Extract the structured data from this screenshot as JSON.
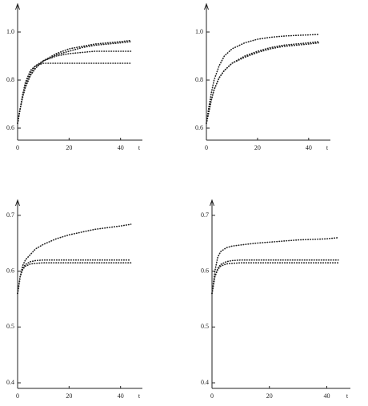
{
  "chart_data": [
    {
      "type": "line",
      "x_label": "t",
      "x": [
        0,
        1,
        2,
        3,
        5,
        7,
        10,
        15,
        20,
        25,
        30,
        35,
        40,
        44
      ],
      "xlim": [
        0,
        46
      ],
      "xticks": [
        0,
        20,
        40
      ],
      "ylim": [
        0.55,
        1.1
      ],
      "yticks": [
        0.6,
        0.8,
        {
          "value": 1,
          "label": "1.0"
        }
      ],
      "series": [
        {
          "color": "#222",
          "values": [
            0.62,
            0.68,
            0.74,
            0.79,
            0.84,
            0.86,
            0.87,
            0.87,
            0.87,
            0.87,
            0.87,
            0.87,
            0.87,
            0.87
          ]
        },
        {
          "color": "#222",
          "values": [
            0.62,
            0.68,
            0.74,
            0.78,
            0.83,
            0.86,
            0.88,
            0.9,
            0.91,
            0.915,
            0.92,
            0.92,
            0.92,
            0.92
          ]
        },
        {
          "color": "#222",
          "values": [
            0.62,
            0.68,
            0.73,
            0.77,
            0.82,
            0.85,
            0.88,
            0.91,
            0.93,
            0.94,
            0.95,
            0.955,
            0.96,
            0.965
          ]
        },
        {
          "color": "#222",
          "values": [
            0.62,
            0.68,
            0.73,
            0.77,
            0.82,
            0.85,
            0.88,
            0.905,
            0.92,
            0.935,
            0.945,
            0.95,
            0.955,
            0.96
          ]
        }
      ]
    },
    {
      "type": "line",
      "x_label": "t",
      "x": [
        0,
        1,
        2,
        3,
        5,
        7,
        10,
        15,
        20,
        25,
        30,
        35,
        40,
        44
      ],
      "xlim": [
        0,
        46
      ],
      "xticks": [
        0,
        20,
        40
      ],
      "ylim": [
        0.55,
        1.1
      ],
      "yticks": [
        0.6,
        0.8,
        {
          "value": 1,
          "label": "1.0"
        }
      ],
      "series": [
        {
          "color": "#222",
          "values": [
            0.62,
            0.69,
            0.75,
            0.8,
            0.86,
            0.9,
            0.93,
            0.955,
            0.97,
            0.978,
            0.983,
            0.986,
            0.988,
            0.99
          ]
        },
        {
          "color": "#222",
          "values": [
            0.62,
            0.67,
            0.72,
            0.76,
            0.81,
            0.84,
            0.87,
            0.9,
            0.92,
            0.935,
            0.945,
            0.95,
            0.955,
            0.96
          ]
        },
        {
          "color": "#222",
          "values": [
            0.62,
            0.67,
            0.72,
            0.76,
            0.81,
            0.84,
            0.87,
            0.895,
            0.915,
            0.93,
            0.94,
            0.945,
            0.95,
            0.955
          ]
        }
      ]
    },
    {
      "type": "line",
      "x_label": "t",
      "x": [
        0,
        1,
        2,
        3,
        5,
        7,
        10,
        15,
        20,
        25,
        30,
        35,
        40,
        44
      ],
      "xlim": [
        0,
        46
      ],
      "xticks": [
        0,
        20,
        40
      ],
      "ylim": [
        0.39,
        0.72
      ],
      "yticks": [
        0.4,
        0.5,
        0.6,
        0.7
      ],
      "series": [
        {
          "color": "#222",
          "values": [
            0.56,
            0.59,
            0.61,
            0.62,
            0.63,
            0.64,
            0.648,
            0.658,
            0.665,
            0.67,
            0.675,
            0.678,
            0.681,
            0.684
          ]
        },
        {
          "color": "#222",
          "values": [
            0.56,
            0.59,
            0.605,
            0.612,
            0.617,
            0.619,
            0.62,
            0.62,
            0.62,
            0.62,
            0.62,
            0.62,
            0.62,
            0.62
          ]
        },
        {
          "color": "#222",
          "values": [
            0.56,
            0.59,
            0.603,
            0.609,
            0.613,
            0.614,
            0.615,
            0.615,
            0.615,
            0.615,
            0.615,
            0.615,
            0.615,
            0.615
          ]
        }
      ]
    },
    {
      "type": "line",
      "x_label": "t",
      "x": [
        0,
        1,
        2,
        3,
        5,
        7,
        10,
        15,
        20,
        25,
        30,
        35,
        40,
        44
      ],
      "xlim": [
        0,
        46
      ],
      "xticks": [
        0,
        20,
        40
      ],
      "ylim": [
        0.39,
        0.72
      ],
      "yticks": [
        0.4,
        0.5,
        0.6,
        0.7
      ],
      "series": [
        {
          "color": "#222",
          "values": [
            0.56,
            0.6,
            0.625,
            0.635,
            0.642,
            0.645,
            0.647,
            0.65,
            0.652,
            0.654,
            0.656,
            0.657,
            0.658,
            0.66
          ]
        },
        {
          "color": "#222",
          "values": [
            0.56,
            0.59,
            0.605,
            0.612,
            0.617,
            0.619,
            0.62,
            0.62,
            0.62,
            0.62,
            0.62,
            0.62,
            0.62,
            0.62
          ]
        },
        {
          "color": "#222",
          "values": [
            0.56,
            0.59,
            0.603,
            0.609,
            0.613,
            0.614,
            0.615,
            0.615,
            0.615,
            0.615,
            0.615,
            0.615,
            0.615,
            0.615
          ]
        }
      ]
    }
  ]
}
